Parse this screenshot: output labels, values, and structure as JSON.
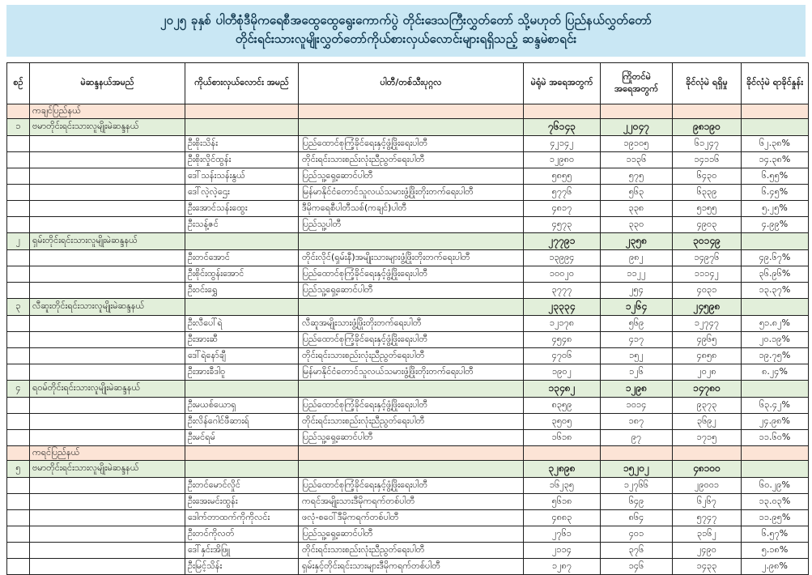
{
  "title": {
    "line1": "၂၀၂၅ ခုနှစ် ပါတီစုံဒီမိုကရေစီအထွေထွေရွေးကောက်ပွဲ တိုင်းဒေသကြီးလွှတ်တော် သို့မဟုတ် ပြည်နယ်လွှတ်တော်",
    "line2": "တိုင်းရင်းသားလူမျိုးလွှတ်တော်ကိုယ်စားလှယ်လောင်းများရရှိသည့် ဆန္ဒမဲစာရင်း"
  },
  "columns": [
    {
      "key": "serial",
      "label": "စဉ်"
    },
    {
      "key": "constituency",
      "label": "မဲဆန္ဒနယ်အမည်"
    },
    {
      "key": "candidate",
      "label": "ကိုယ်စားလှယ်လောင်း အမည်"
    },
    {
      "key": "party",
      "label": "ပါတီ/တစ်သီးပုဂ္ဂလ"
    },
    {
      "key": "polling",
      "label": "မဲရုံမဲ အရေအတွက်"
    },
    {
      "key": "advance",
      "label": "ကြိုတင်မဲ အရေအတွက်"
    },
    {
      "key": "valid",
      "label": "ခိုင်လုံမဲ ရရှိမှု"
    },
    {
      "key": "percent",
      "label": "ခိုင်လုံမဲ ရာခိုင်နှုန်း"
    }
  ],
  "state_groups": [
    {
      "state": "ကချင်ပြည်နယ်",
      "sections": [
        {
          "no": "၁",
          "constituency": "ဗမာတိုင်းရင်းသားလူမျိုးမဲဆန္ဒနယ်",
          "totals": {
            "polling": "၇၆၁၄၃",
            "advance": "၂၂၀၄၇",
            "valid": "၉၈၁၉၀"
          },
          "candidates": [
            {
              "name": "ဦးစိုးသိန်း",
              "party": "ပြည်ထောင်စုကြံ့ခိုင်ရေးနှင့်ဖွံ့ဖြိုးရေးပါတီ",
              "polling": "၄၂၁၄၂",
              "advance": "၁၉၁၀၅",
              "valid": "၆၁၂၄၇",
              "percent": "၆၂.၃၈%"
            },
            {
              "name": "ဦးစိုးလှိုင်ထွန်း",
              "party": "တိုင်းရင်းသားစည်းလုံးညီညွတ်ရေးပါတီ",
              "polling": "၁၂၉၈၀",
              "advance": "၁၁၃၆",
              "valid": "၁၄၁၁၆",
              "percent": "၁၄.၃၈%"
            },
            {
              "name": "ဒေါ်သန်းသန်းနွယ်",
              "party": "ပြည်သူ့ရှေ့ဆောင်ပါတီ",
              "polling": "၅၈၅၅",
              "advance": "၅၇၅",
              "valid": "၆၄၃၀",
              "percent": "၆.၅၅%"
            },
            {
              "name": "ဒေါ်လဲ့လဲ့ဌေး",
              "party": "မြန်မာနိုင်ငံတောင်သူလယ်သမားဖွံ့ဖြိုးတိုးတက်ရေးပါတီ",
              "polling": "၅၇၇၆",
              "advance": "၅၆၃",
              "valid": "၆၃၃၉",
              "percent": "၆.၄၅%"
            },
            {
              "name": "ဦးအောင်သန်းထွေး",
              "party": "ဒီမိုကရေစီပါတီသစ်(ကချင်)ပါတီ",
              "polling": "၄၈၁၇",
              "advance": "၃၃၈",
              "valid": "၅၁၅၅",
              "percent": "၅.၂၅%"
            },
            {
              "name": "ဦးသန့်ဇင်",
              "party": "ပြည်သူ့ပါတီ",
              "polling": "၄၅၇၃",
              "advance": "၃၃၀",
              "valid": "၄၉၀၃",
              "percent": "၄.၉၉%"
            }
          ]
        },
        {
          "no": "၂",
          "constituency": "ရှမ်းတိုင်းရင်းသားလူမျိုးမဲဆန္ဒနယ်",
          "totals": {
            "polling": "၂၇၇၉၁",
            "advance": "၂၃၅၈",
            "valid": "၃၀၁၄၉"
          },
          "candidates": [
            {
              "name": "ဦးတင်အောင်",
              "party": "တိုင်းလိုင်(ရှမ်းနီ)အမျိုးသားများဖွံ့ဖြိုးတိုးတက်ရေးပါတီ",
              "polling": "၁၃၉၉၄",
              "advance": "၉၈၂",
              "valid": "၁၄၉၇၆",
              "percent": "၄၉.၆၇%"
            },
            {
              "name": "ဦးစိုင်းထွန်းအောင်",
              "party": "ပြည်ထောင်စုကြံ့ခိုင်ရေးနှင့်ဖွံ့ဖြိုးရေးပါတီ",
              "polling": "၁၀၀၂၀",
              "advance": "၁၁၂၂",
              "valid": "၁၁၁၄၂",
              "percent": "၃၆.၉၆%"
            },
            {
              "name": "ဦးဝင်းရွှေ",
              "party": "ပြည်သူ့ရှေ့ဆောင်ပါတီ",
              "polling": "၃၇၇၇",
              "advance": "၂၅၄",
              "valid": "၄၀၃၁",
              "percent": "၁၃.၃၇%"
            }
          ]
        },
        {
          "no": "၃",
          "constituency": "လီဆူးတိုင်းရင်းသားလူမျိုးမဲဆန္ဒနယ်",
          "totals": {
            "polling": "၂၃၃၃၄",
            "advance": "၁၂၆၄",
            "valid": "၂၄၅၉၈"
          },
          "candidates": [
            {
              "name": "ဦးလီပေါ်ရဲ",
              "party": "လီဆူအမျိုးသားဖွံ့ဖြိုးတိုးတက်ရေးပါတီ",
              "polling": "၁၂၁၇၈",
              "advance": "၅၆၉",
              "valid": "၁၂၇၄၇",
              "percent": "၅၁.၈၂%"
            },
            {
              "name": "ဦးအားဆီ",
              "party": "ပြည်ထောင်စုကြံ့ခိုင်ရေးနှင့်ဖွံ့ဖြိုးရေးပါတီ",
              "polling": "၄၅၄၈",
              "advance": "၄၁၇",
              "valid": "၄၉၆၅",
              "percent": "၂၀.၁၉%"
            },
            {
              "name": "ဒေါ်ရဲနော်ချီ",
              "party": "တိုင်းရင်းသားစည်းလုံးညီညွတ်ရေးပါတီ",
              "polling": "၄၇၀၆",
              "advance": "၁၅၂",
              "valid": "၄၈၅၈",
              "percent": "၁၉.၇၅%"
            },
            {
              "name": "ဦးအားခီဒါဝူ",
              "party": "မြန်မာနိုင်ငံတောင်သူလယ်သမားဖွံ့ဖြိုးတိုးတက်ရေးပါတီ",
              "polling": "၁၉၀၂",
              "advance": "၁၂၆",
              "valid": "၂၀၂၈",
              "percent": "၈.၂၄%"
            }
          ]
        },
        {
          "no": "၄",
          "constituency": "ရဝမ်တိုင်းရင်းသားလူမျိုးမဲဆန္ဒနယ်",
          "totals": {
            "polling": "၁၃၄၈၂",
            "advance": "၁၂၉၈",
            "valid": "၁၄၇၈၀"
          },
          "candidates": [
            {
              "name": "ဦးမယစ်ယောရှ",
              "party": "ပြည်ထောင်စုကြံ့ခိုင်ရေးနှင့်ဖွံ့ဖြိုးရေးပါတီ",
              "polling": "၈၃၅၉",
              "advance": "၁၀၁၄",
              "valid": "၉၃၇၃",
              "percent": "၆၃.၄၂%"
            },
            {
              "name": "ဦးလိန်ဂေါင်ဖီဆားရ်",
              "party": "တိုင်းရင်းသားစည်းလုံးညီညွတ်ရေးပါတီ",
              "polling": "၃၅၀၅",
              "advance": "၁၈၇",
              "valid": "၃၆၉၂",
              "percent": "၂၄.၉၈%"
            },
            {
              "name": "ဦးမင်ရမ်",
              "party": "ပြည်သူ့ရှေ့ဆောင်ပါတီ",
              "polling": "၁၆၁၈",
              "advance": "၉၇",
              "valid": "၁၇၁၅",
              "percent": "၁၁.၆၀%"
            }
          ]
        }
      ]
    },
    {
      "state": "ကရင်ပြည်နယ်",
      "sections": [
        {
          "no": "၅",
          "constituency": "ဗမာတိုင်းရင်းသားလူမျိုးမဲဆန္ဒနယ်",
          "totals": {
            "polling": "၃၂၈၉၈",
            "advance": "၁၅၂၀၂",
            "valid": "၄၈၁၀၀"
          },
          "candidates": [
            {
              "name": "ဦးတင်မောင်လှိုင်",
              "party": "ပြည်ထောင်စုကြံ့ခိုင်ရေးနှင့်ဖွံ့ဖြိုးရေးပါတီ",
              "polling": "၁၆၂၃၅",
              "advance": "၁၂၇၆၆",
              "valid": "၂၉၀၀၁",
              "percent": "၆၀.၂၉%"
            },
            {
              "name": "ဦးအေးမင်းထွန်း",
              "party": "ကရင်အမျိုးသားဒီမိုကရက်တစ်ပါတီ",
              "polling": "၅၆၁၈",
              "advance": "၆၄၉",
              "valid": "၆၂၆၇",
              "percent": "၁၃.၀၃%"
            },
            {
              "name": "ဒေါက်တာထက်ကိုကိုလင်း",
              "party": "ဖလုံ-စဝေါ်ဒီမိုကရက်တစ်ပါတီ",
              "polling": "၄၈၈၃",
              "advance": "၈၆၄",
              "valid": "၅၇၄၇",
              "percent": "၁၁.၉၅%"
            },
            {
              "name": "ဦးတင်ကိုလတ်",
              "party": "ပြည်သူ့ရှေ့ဆောင်ပါတီ",
              "polling": "၂၇၆၁",
              "advance": "၄၀၁",
              "valid": "၃၁၆၂",
              "percent": "၆.၅၇%"
            },
            {
              "name": "ဒေါ်နှင်းအိဖြူ",
              "party": "တိုင်းရင်းသားစည်းလုံးညီညွတ်ရေးပါတီ",
              "polling": "၂၁၁၄",
              "advance": "၃၇၆",
              "valid": "၂၄၉၀",
              "percent": "၅.၁၈%"
            },
            {
              "name": "ဦးမြင့်သိန်း",
              "party": "ရှမ်းနှင့်တိုင်းရင်းသားများဒီမိုကရက်တစ်ပါတီ",
              "polling": "၁၂၈၇",
              "advance": "၁၄၆",
              "valid": "၁၄၃၃",
              "percent": "၂.၉၈%"
            }
          ]
        }
      ]
    }
  ],
  "colors": {
    "banner_bg": "#c9e7f4",
    "title_text": "#11374e",
    "state_row_bg": "#fce4d6",
    "section_row_bg": "#e2efda",
    "border": "#1f1f1f"
  }
}
